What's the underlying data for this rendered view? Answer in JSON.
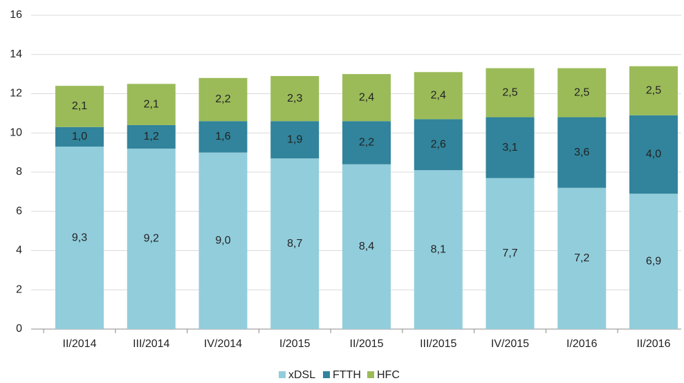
{
  "chart_data": {
    "type": "stacked_bar",
    "categories": [
      "II/2014",
      "III/2014",
      "IV/2014",
      "I/2015",
      "II/2015",
      "III/2015",
      "IV/2015",
      "I/2016",
      "II/2016"
    ],
    "series": [
      {
        "name": "xDSL",
        "color": "#92cddc",
        "values": [
          9.3,
          9.2,
          9.0,
          8.7,
          8.4,
          8.1,
          7.7,
          7.2,
          6.9
        ],
        "value_labels": [
          "9,3",
          "9,2",
          "9,0",
          "8,7",
          "8,4",
          "8,1",
          "7,7",
          "7,2",
          "6,9"
        ]
      },
      {
        "name": "FTTH",
        "color": "#31849b",
        "values": [
          1.0,
          1.2,
          1.6,
          1.9,
          2.2,
          2.6,
          3.1,
          3.6,
          4.0
        ],
        "value_labels": [
          "1,0",
          "1,2",
          "1,6",
          "1,9",
          "2,2",
          "2,6",
          "3,1",
          "3,6",
          "4,0"
        ]
      },
      {
        "name": "HFC",
        "color": "#9bbb59",
        "values": [
          2.1,
          2.1,
          2.2,
          2.3,
          2.4,
          2.4,
          2.5,
          2.5,
          2.5
        ],
        "value_labels": [
          "2,1",
          "2,1",
          "2,2",
          "2,3",
          "2,4",
          "2,4",
          "2,5",
          "2,5",
          "2,5"
        ]
      }
    ],
    "ylim": [
      0,
      16
    ],
    "yticks": [
      0,
      2,
      4,
      6,
      8,
      10,
      12,
      14,
      16
    ],
    "grid": true,
    "legend": "bottom"
  }
}
